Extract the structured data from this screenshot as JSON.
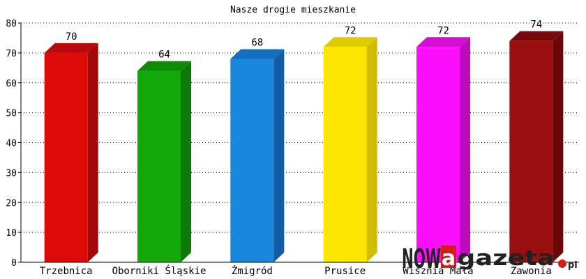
{
  "chart_data": {
    "type": "bar",
    "title": "Nasze drogie mieszkanie",
    "categories": [
      "Trzebnica",
      "Oborniki Śląskie",
      "Żmigród",
      "Prusice",
      "Wisznia Mała",
      "Zawonia"
    ],
    "values": [
      70,
      64,
      68,
      72,
      72,
      74
    ],
    "value_labels": [
      "70",
      "64",
      "68",
      "72",
      "72",
      "74"
    ],
    "ylim": [
      0,
      80
    ],
    "yticks": [
      0,
      10,
      20,
      30,
      40,
      50,
      60,
      70,
      80
    ],
    "grid": true,
    "xlabel": "",
    "ylabel": "",
    "bar_colors": [
      {
        "front": "#dd0a0a",
        "side": "#a30808",
        "top": "#b80a0a"
      },
      {
        "front": "#13a808",
        "side": "#0e7a06",
        "top": "#0f8a07"
      },
      {
        "front": "#1a87dc",
        "side": "#115ea6",
        "top": "#1470bf"
      },
      {
        "front": "#fce500",
        "side": "#d0bd00",
        "top": "#e0cb00"
      },
      {
        "front": "#fc10fc",
        "side": "#bd0cbd",
        "top": "#d40ed4"
      },
      {
        "front": "#9a0f0f",
        "side": "#6a0808",
        "top": "#7a0a0a"
      }
    ]
  },
  "watermark": {
    "text_part1": "NOW",
    "text_letter": "a",
    "text_part2": "gazeta",
    "text_dot": ".",
    "text_tld": "pl",
    "color_text": "#222222",
    "color_accent": "#d71a1a"
  }
}
